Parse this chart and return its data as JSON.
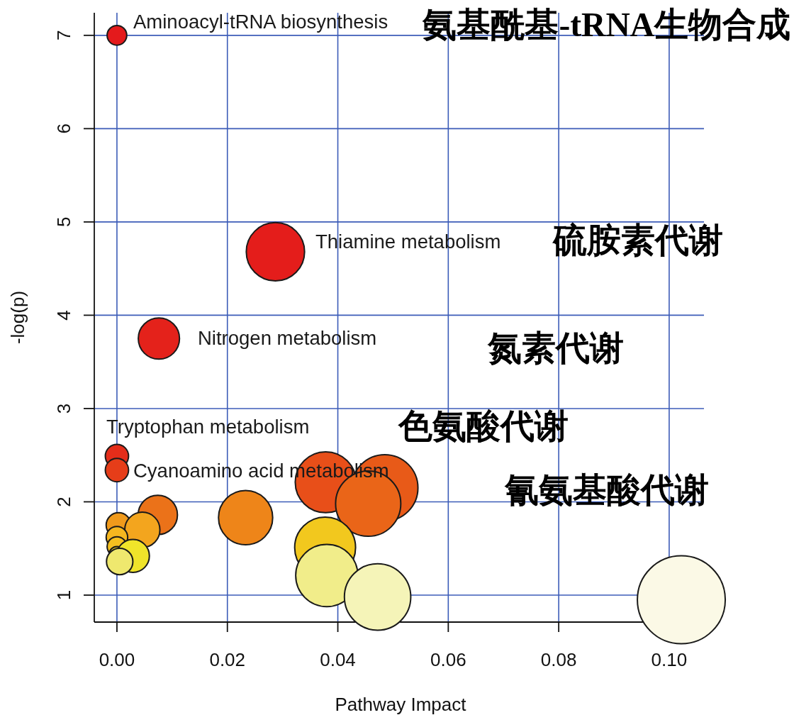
{
  "chart_data": {
    "type": "bubble",
    "xlabel": "Pathway Impact",
    "ylabel": "-log(p)",
    "x": [
      0,
      0.0287,
      0.0076,
      0,
      0,
      0.0378,
      0.0485,
      0.0455,
      0.0074,
      0.0233,
      0.0003,
      0.0046,
      0,
      0,
      0.0377,
      0,
      0.0029,
      0.0005,
      0.038,
      0.0472,
      0.1022
    ],
    "values": [
      7.0,
      4.68,
      3.75,
      2.49,
      2.34,
      2.21,
      2.15,
      1.98,
      1.86,
      1.83,
      1.75,
      1.7,
      1.62,
      1.52,
      1.51,
      1.44,
      1.42,
      1.36,
      1.21,
      0.98,
      0.95
    ],
    "sizes": [
      0.05,
      0.44,
      0.22,
      0.07,
      0.07,
      0.48,
      0.57,
      0.55,
      0.2,
      0.38,
      0.08,
      0.16,
      0.06,
      0.05,
      0.48,
      0.03,
      0.14,
      0.09,
      0.5,
      0.57,
      1
    ],
    "colors": [
      "#e41a1c",
      "#e41d1b",
      "#e4221b",
      "#e42d1a",
      "#e63d19",
      "#e84f19",
      "#e85a18",
      "#ea6518",
      "#eb7219",
      "#ee8519",
      "#f09a1c",
      "#f3a51e",
      "#f5b720",
      "#f5c020",
      "#f2c81e",
      "#f3d423",
      "#f0e42a",
      "#efe86e",
      "#f1ed8a",
      "#f5f4b8",
      "#fbf9e6"
    ],
    "xlim": [
      -0.0041,
      0.1063
    ],
    "ylim": [
      0.711,
      7.242
    ],
    "xticks": [
      {
        "value": 0,
        "label": "0.00"
      },
      {
        "value": 0.02,
        "label": "0.02"
      },
      {
        "value": 0.04,
        "label": "0.04"
      },
      {
        "value": 0.06,
        "label": "0.06"
      },
      {
        "value": 0.08,
        "label": "0.08"
      },
      {
        "value": 0.1,
        "label": "0.10"
      }
    ],
    "yticks": [
      1,
      2,
      3,
      4,
      5,
      6,
      7
    ],
    "grid": true,
    "marker": "circle",
    "annotations": [
      "Aminoacyl-tRNA biosynthesis",
      "Thiamine metabolism",
      "Nitrogen metabolism",
      "Tryptophan metabolism",
      "Cyanoamino acid metabolism",
      "氨基酰基-tRNA生物合成",
      "硫胺素代谢",
      "氮素代谢",
      "色氨酸代谢",
      "氰氨基酸代谢"
    ]
  }
}
